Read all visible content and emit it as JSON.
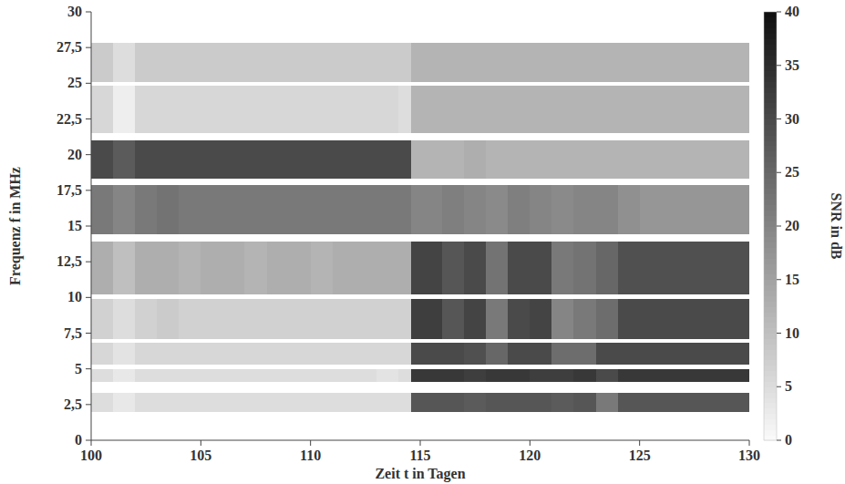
{
  "chart_data": {
    "type": "heatmap",
    "xlabel": "Zeit t in Tagen",
    "ylabel": "Frequenz f in MHz",
    "xlim": [
      100,
      130
    ],
    "ylim": [
      0,
      30
    ],
    "xticks": [
      100,
      105,
      110,
      115,
      120,
      125,
      130
    ],
    "yticks": [
      0,
      {
        "value": 2.5,
        "label": "2,5"
      },
      5,
      {
        "value": 7.5,
        "label": "7,5"
      },
      10,
      {
        "value": 12.5,
        "label": "12,5"
      },
      15,
      {
        "value": 17.5,
        "label": "17,5"
      },
      20,
      {
        "value": 22.5,
        "label": "22,5"
      },
      25,
      {
        "value": 27.5,
        "label": "27,5"
      },
      30
    ],
    "time_edges": [
      100,
      101,
      102,
      103,
      104,
      105,
      106,
      107,
      108,
      109,
      110,
      111,
      112,
      113,
      114,
      114.6,
      116,
      117,
      118,
      119,
      120,
      121,
      122,
      123,
      124,
      125,
      126,
      127,
      128,
      129,
      130
    ],
    "bands": [
      {
        "f_min": 2.0,
        "f_max": 3.3,
        "values": [
          5,
          3,
          5,
          5,
          5,
          5,
          5,
          5,
          5,
          5,
          5,
          5,
          5,
          5,
          5,
          28,
          28,
          27,
          28,
          28,
          28,
          27,
          28,
          22,
          28,
          28,
          28,
          28,
          28,
          28
        ]
      },
      {
        "f_min": 4.1,
        "f_max": 5.0,
        "values": [
          5,
          3,
          5,
          5,
          5,
          5,
          5,
          5,
          5,
          5,
          5,
          5,
          5,
          4,
          5,
          33,
          33,
          32,
          33,
          33,
          32,
          32,
          33,
          30,
          33,
          33,
          33,
          33,
          33,
          33
        ]
      },
      {
        "f_min": 5.3,
        "f_max": 6.8,
        "values": [
          6,
          4,
          6,
          6,
          6,
          6,
          6,
          6,
          6,
          6,
          6,
          6,
          6,
          6,
          6,
          30,
          30,
          29,
          25,
          30,
          30,
          24,
          24,
          30,
          30,
          30,
          30,
          30,
          30,
          30
        ]
      },
      {
        "f_min": 7.1,
        "f_max": 9.9,
        "values": [
          7,
          5,
          7,
          8,
          7,
          7,
          7,
          7,
          7,
          7,
          7,
          7,
          7,
          7,
          7,
          32,
          28,
          31,
          22,
          30,
          31,
          20,
          22,
          24,
          30,
          30,
          30,
          30,
          30,
          30
        ]
      },
      {
        "f_min": 10.2,
        "f_max": 13.9,
        "values": [
          13,
          10,
          13,
          13,
          12,
          13,
          13,
          12,
          13,
          13,
          12,
          13,
          13,
          13,
          13,
          31,
          28,
          30,
          23,
          30,
          30,
          22,
          23,
          25,
          29,
          29,
          29,
          29,
          29,
          29
        ]
      },
      {
        "f_min": 14.4,
        "f_max": 17.9,
        "values": [
          22,
          20,
          22,
          23,
          22,
          22,
          22,
          22,
          22,
          22,
          22,
          22,
          22,
          22,
          22,
          20,
          21,
          20,
          19,
          21,
          20,
          19,
          20,
          20,
          18,
          17,
          17,
          17,
          17,
          17
        ]
      },
      {
        "f_min": 18.3,
        "f_max": 21.0,
        "values": [
          30,
          27,
          30,
          30,
          30,
          30,
          30,
          30,
          30,
          30,
          30,
          30,
          30,
          30,
          30,
          12,
          12,
          13,
          12,
          12,
          12,
          12,
          12,
          12,
          12,
          12,
          12,
          12,
          12,
          12
        ]
      },
      {
        "f_min": 21.5,
        "f_max": 24.8,
        "values": [
          6,
          2,
          6,
          6,
          6,
          6,
          6,
          6,
          6,
          6,
          6,
          6,
          6,
          6,
          5,
          12,
          12,
          12,
          12,
          12,
          12,
          12,
          12,
          12,
          12,
          12,
          12,
          12,
          12,
          12
        ]
      },
      {
        "f_min": 25.1,
        "f_max": 27.8,
        "values": [
          8,
          5,
          8,
          8,
          8,
          8,
          8,
          8,
          8,
          8,
          8,
          8,
          8,
          8,
          8,
          12,
          12,
          12,
          12,
          12,
          12,
          12,
          12,
          12,
          12,
          12,
          12,
          12,
          12,
          12
        ]
      }
    ],
    "colorbar_label": "SNR in dB",
    "colorbar_lim": [
      0,
      40
    ],
    "colorbar_ticks": [
      0,
      5,
      10,
      15,
      20,
      25,
      30,
      35,
      40
    ]
  }
}
